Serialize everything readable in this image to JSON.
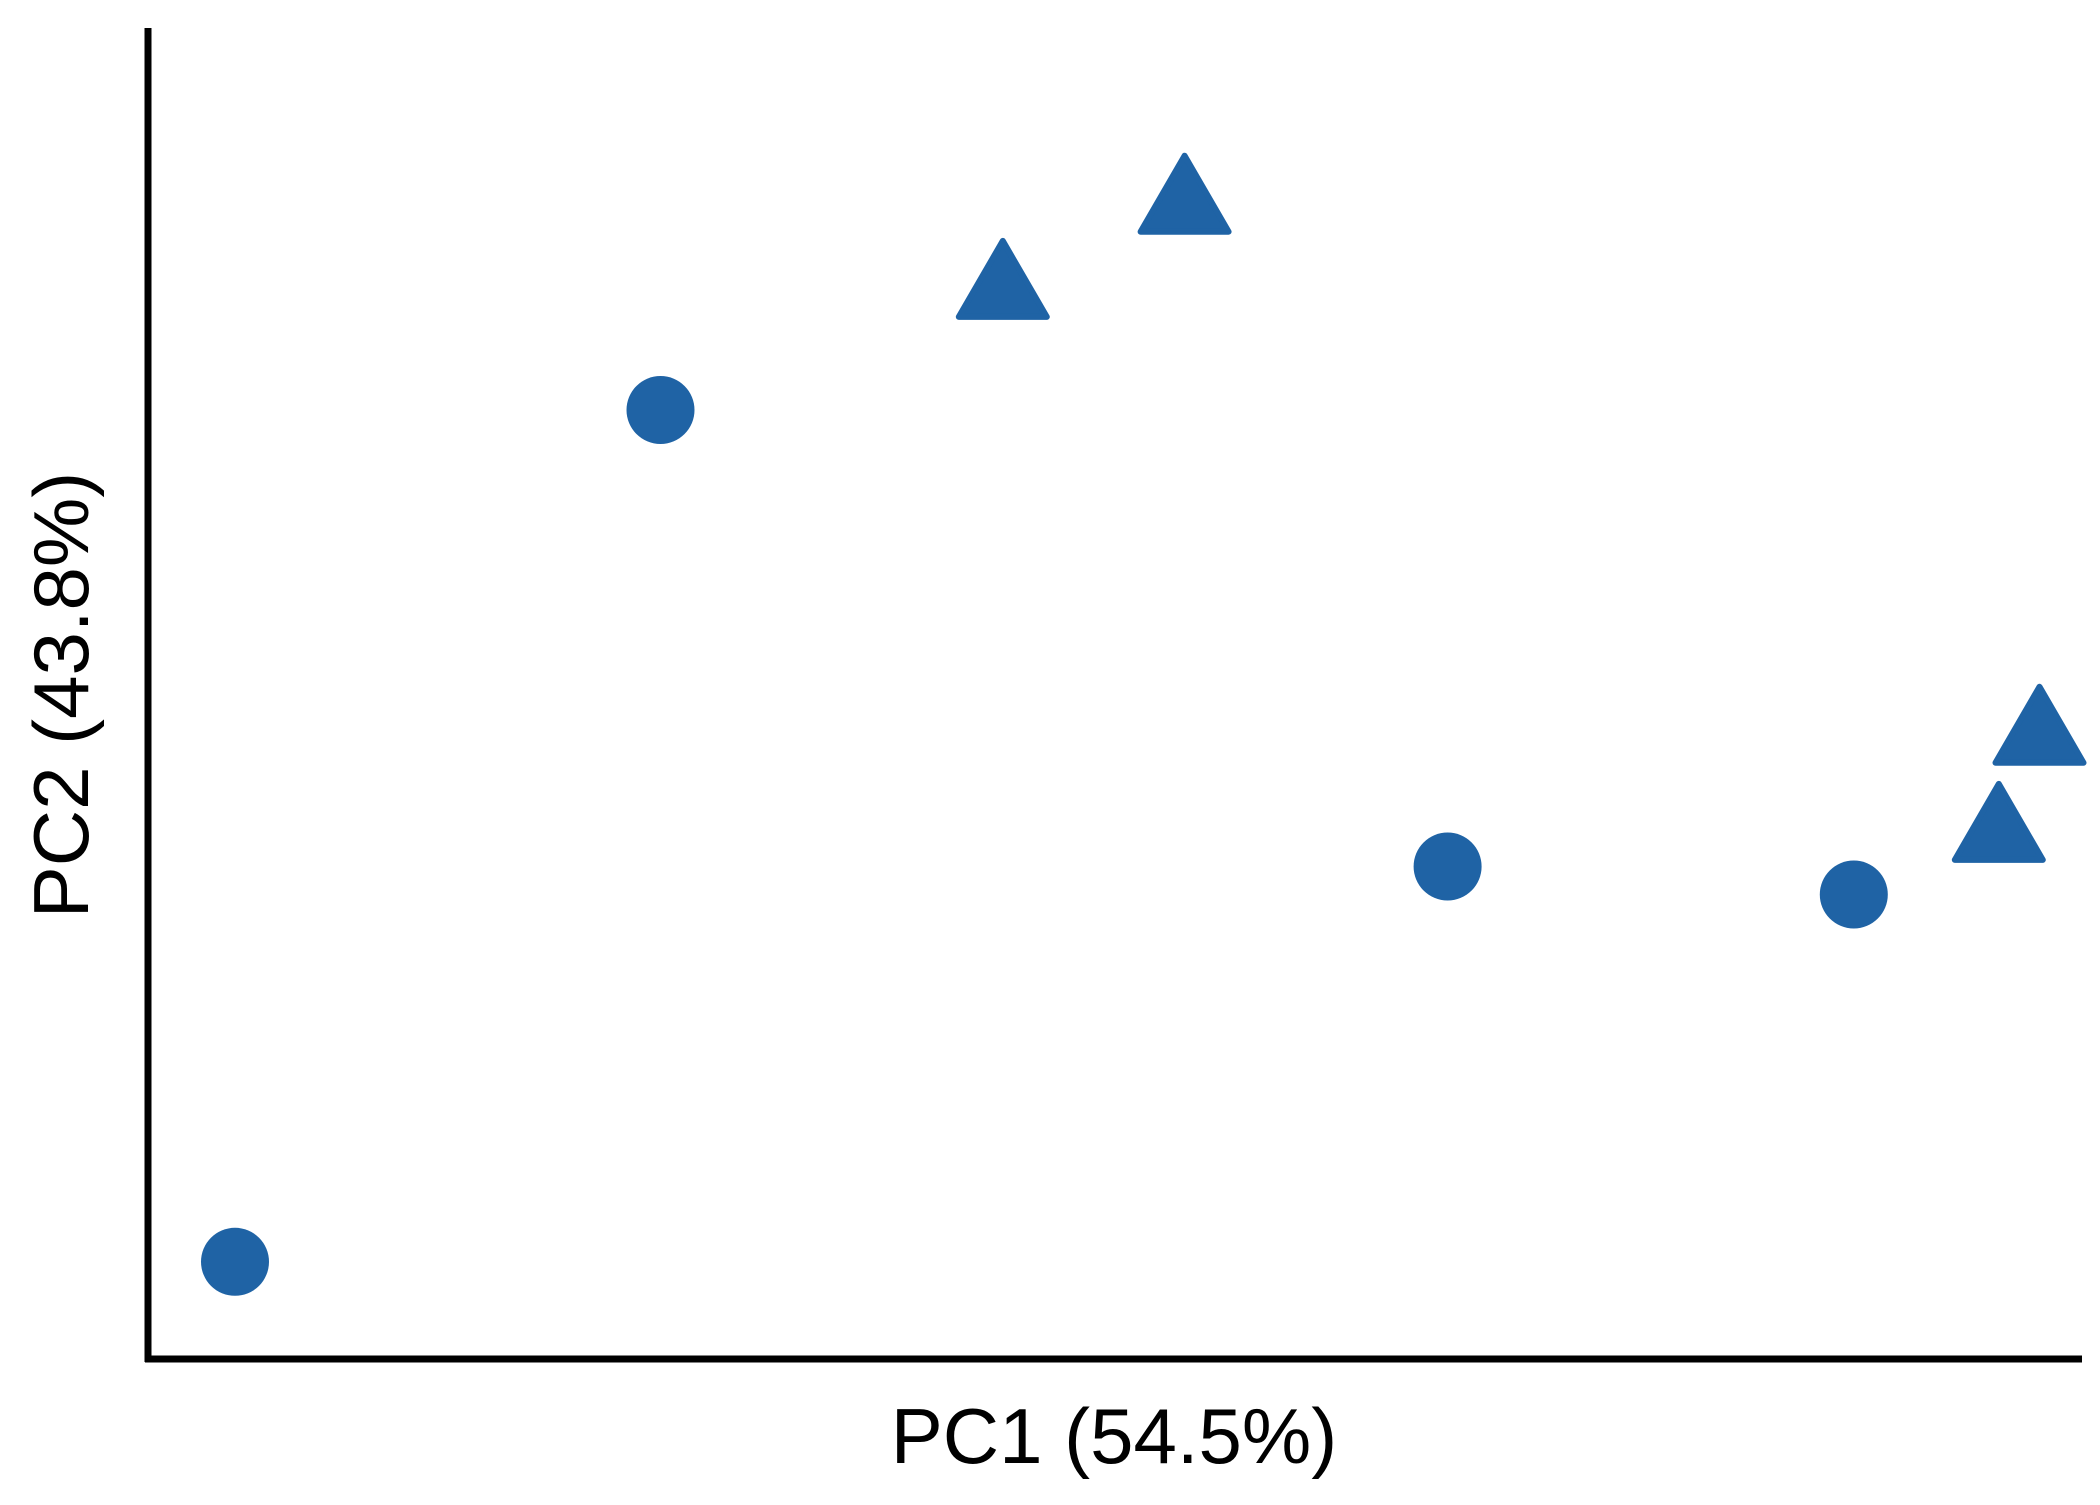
{
  "chart_data": {
    "type": "scatter",
    "title": "",
    "xlabel": "PC1 (54.5%)",
    "ylabel": "PC2 (43.8%)",
    "xlim": [
      0,
      1
    ],
    "ylim": [
      0,
      1
    ],
    "grid": false,
    "legend": "none",
    "ticks": "none",
    "marker_color": "#1f63a5",
    "axis_color": "#000000",
    "series": [
      {
        "marker": "circle",
        "x": [
          0.045,
          0.265,
          0.672,
          0.882
        ],
        "y": [
          0.073,
          0.713,
          0.37,
          0.349
        ]
      },
      {
        "marker": "triangle",
        "x": [
          0.442,
          0.536,
          0.957,
          0.978
        ],
        "y": [
          0.802,
          0.866,
          0.394,
          0.467
        ]
      }
    ]
  }
}
